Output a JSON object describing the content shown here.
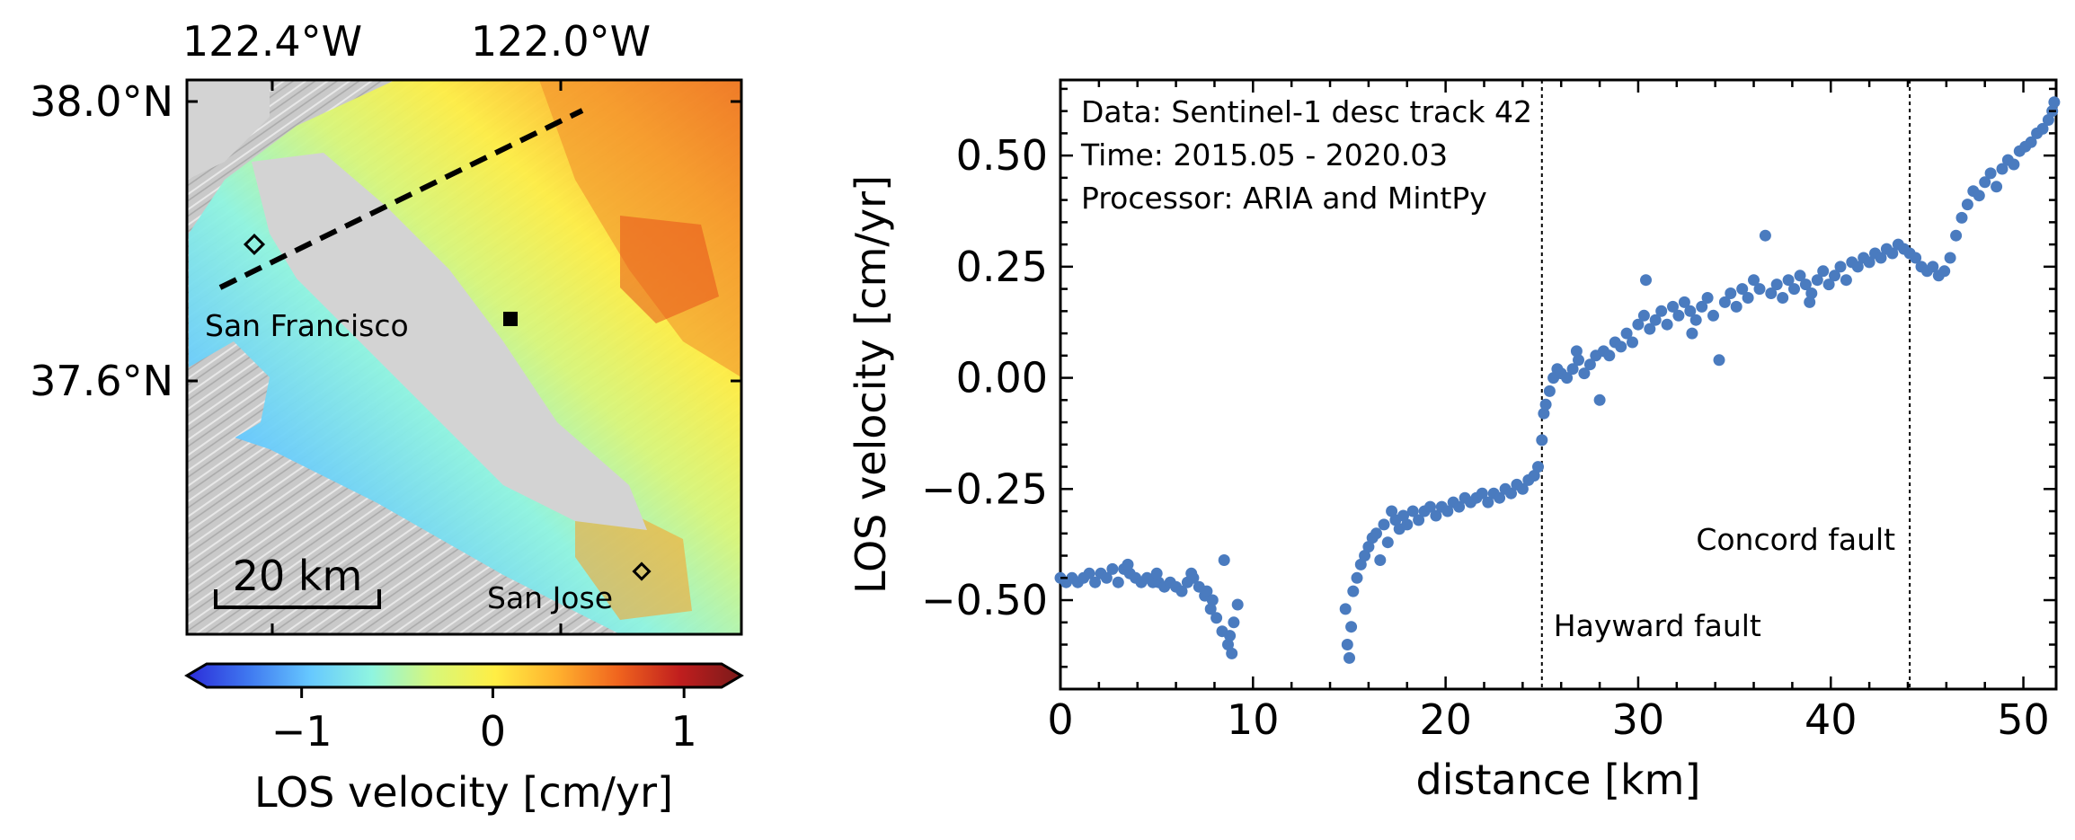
{
  "map": {
    "lon_labels": [
      "122.4°W",
      "122.0°W"
    ],
    "lat_labels": [
      "38.0°N",
      "37.6°N"
    ],
    "city_labels": [
      "San Francisco",
      "San Jose"
    ],
    "scale_label": "20 km",
    "colorbar": {
      "label": "LOS velocity [cm/yr]",
      "ticks": [
        "−1",
        "0",
        "1"
      ],
      "tick_values": [
        -1,
        0,
        1
      ],
      "range": [
        -1.6,
        1.3
      ],
      "colormap_stops": [
        "#2b2bd8",
        "#3f78f0",
        "#66c8ff",
        "#8ff5e0",
        "#d8f77a",
        "#ffee44",
        "#ffb22e",
        "#f0641e",
        "#c01e1e",
        "#7a1a1a"
      ]
    }
  },
  "chart_data": {
    "type": "scatter",
    "title": "",
    "xlabel": "distance [km]",
    "ylabel": "LOS velocity [cm/yr]",
    "xlim": [
      0,
      51.7
    ],
    "ylim": [
      -0.7,
      0.67
    ],
    "xticks": [
      0,
      10,
      20,
      30,
      40,
      50
    ],
    "yticks": [
      -0.5,
      -0.25,
      0.0,
      0.25,
      0.5
    ],
    "ytick_labels": [
      "−0.50",
      "−0.25",
      "0.00",
      "0.25",
      "0.50"
    ],
    "annotations": [
      "Data: Sentinel-1 desc track 42",
      "Time: 2015.05 - 2020.03",
      "Processor: ARIA and MintPy"
    ],
    "fault_lines": [
      {
        "x": 25.0,
        "label": "Hayward fault"
      },
      {
        "x": 44.1,
        "label": "Concord fault"
      }
    ],
    "marker_color": "#4a7bbf",
    "series": [
      {
        "name": "LOS velocity",
        "points": [
          [
            0.0,
            -0.45
          ],
          [
            0.3,
            -0.46
          ],
          [
            0.6,
            -0.45
          ],
          [
            0.9,
            -0.46
          ],
          [
            1.2,
            -0.45
          ],
          [
            1.5,
            -0.44
          ],
          [
            1.8,
            -0.46
          ],
          [
            2.1,
            -0.44
          ],
          [
            2.4,
            -0.45
          ],
          [
            2.7,
            -0.43
          ],
          [
            3.0,
            -0.46
          ],
          [
            3.3,
            -0.43
          ],
          [
            3.6,
            -0.44
          ],
          [
            3.9,
            -0.45
          ],
          [
            4.2,
            -0.46
          ],
          [
            4.5,
            -0.45
          ],
          [
            4.8,
            -0.46
          ],
          [
            5.1,
            -0.46
          ],
          [
            5.4,
            -0.47
          ],
          [
            5.7,
            -0.46
          ],
          [
            6.0,
            -0.47
          ],
          [
            6.3,
            -0.48
          ],
          [
            6.6,
            -0.46
          ],
          [
            6.9,
            -0.45
          ],
          [
            7.2,
            -0.47
          ],
          [
            7.5,
            -0.49
          ],
          [
            7.8,
            -0.52
          ],
          [
            8.1,
            -0.54
          ],
          [
            8.4,
            -0.57
          ],
          [
            8.7,
            -0.6
          ],
          [
            8.9,
            -0.62
          ],
          [
            8.5,
            -0.41
          ],
          [
            9.2,
            -0.51
          ],
          [
            8.8,
            -0.58
          ],
          [
            7.6,
            -0.48
          ],
          [
            3.5,
            -0.42
          ],
          [
            5.0,
            -0.44
          ],
          [
            6.8,
            -0.44
          ],
          [
            9.0,
            -0.55
          ],
          [
            7.9,
            -0.5
          ],
          [
            14.8,
            -0.52
          ],
          [
            14.9,
            -0.6
          ],
          [
            15.0,
            -0.63
          ],
          [
            15.1,
            -0.56
          ],
          [
            15.2,
            -0.48
          ],
          [
            15.4,
            -0.45
          ],
          [
            15.6,
            -0.42
          ],
          [
            15.8,
            -0.4
          ],
          [
            16.0,
            -0.38
          ],
          [
            16.2,
            -0.36
          ],
          [
            16.4,
            -0.35
          ],
          [
            16.6,
            -0.41
          ],
          [
            16.8,
            -0.33
          ],
          [
            17.0,
            -0.37
          ],
          [
            17.2,
            -0.3
          ],
          [
            17.4,
            -0.32
          ],
          [
            17.6,
            -0.34
          ],
          [
            17.8,
            -0.31
          ],
          [
            18.0,
            -0.33
          ],
          [
            18.3,
            -0.3
          ],
          [
            18.6,
            -0.32
          ],
          [
            18.9,
            -0.3
          ],
          [
            19.2,
            -0.29
          ],
          [
            19.5,
            -0.31
          ],
          [
            19.8,
            -0.29
          ],
          [
            20.1,
            -0.3
          ],
          [
            20.4,
            -0.28
          ],
          [
            20.7,
            -0.29
          ],
          [
            21.0,
            -0.27
          ],
          [
            21.3,
            -0.28
          ],
          [
            21.6,
            -0.27
          ],
          [
            21.9,
            -0.26
          ],
          [
            22.2,
            -0.28
          ],
          [
            22.5,
            -0.26
          ],
          [
            22.8,
            -0.27
          ],
          [
            23.1,
            -0.25
          ],
          [
            23.4,
            -0.26
          ],
          [
            23.7,
            -0.24
          ],
          [
            24.0,
            -0.25
          ],
          [
            24.3,
            -0.23
          ],
          [
            24.6,
            -0.22
          ],
          [
            24.8,
            -0.2
          ],
          [
            25.0,
            -0.14
          ],
          [
            25.1,
            -0.08
          ],
          [
            25.2,
            -0.06
          ],
          [
            25.4,
            -0.03
          ],
          [
            25.6,
            0.0
          ],
          [
            25.8,
            0.02
          ],
          [
            26.0,
            0.01
          ],
          [
            26.3,
            0.0
          ],
          [
            26.6,
            0.02
          ],
          [
            26.9,
            0.04
          ],
          [
            27.2,
            0.01
          ],
          [
            27.5,
            0.03
          ],
          [
            27.8,
            0.05
          ],
          [
            28.0,
            -0.05
          ],
          [
            28.2,
            0.06
          ],
          [
            28.5,
            0.05
          ],
          [
            28.8,
            0.08
          ],
          [
            29.1,
            0.07
          ],
          [
            29.4,
            0.1
          ],
          [
            29.7,
            0.08
          ],
          [
            30.0,
            0.12
          ],
          [
            30.3,
            0.14
          ],
          [
            30.6,
            0.11
          ],
          [
            30.9,
            0.13
          ],
          [
            31.2,
            0.15
          ],
          [
            31.5,
            0.12
          ],
          [
            31.8,
            0.16
          ],
          [
            32.1,
            0.14
          ],
          [
            32.4,
            0.17
          ],
          [
            32.7,
            0.15
          ],
          [
            33.0,
            0.13
          ],
          [
            33.3,
            0.16
          ],
          [
            33.6,
            0.18
          ],
          [
            33.9,
            0.14
          ],
          [
            34.2,
            0.04
          ],
          [
            34.5,
            0.17
          ],
          [
            34.8,
            0.19
          ],
          [
            35.1,
            0.16
          ],
          [
            35.4,
            0.2
          ],
          [
            35.7,
            0.18
          ],
          [
            36.0,
            0.22
          ],
          [
            36.3,
            0.2
          ],
          [
            36.6,
            0.32
          ],
          [
            36.9,
            0.19
          ],
          [
            37.2,
            0.21
          ],
          [
            37.5,
            0.18
          ],
          [
            37.8,
            0.22
          ],
          [
            38.1,
            0.2
          ],
          [
            38.4,
            0.23
          ],
          [
            38.7,
            0.21
          ],
          [
            39.0,
            0.19
          ],
          [
            39.3,
            0.22
          ],
          [
            39.6,
            0.24
          ],
          [
            39.9,
            0.21
          ],
          [
            40.2,
            0.23
          ],
          [
            40.5,
            0.25
          ],
          [
            40.8,
            0.22
          ],
          [
            41.1,
            0.26
          ],
          [
            41.4,
            0.25
          ],
          [
            41.7,
            0.27
          ],
          [
            42.0,
            0.26
          ],
          [
            42.3,
            0.28
          ],
          [
            42.6,
            0.27
          ],
          [
            42.9,
            0.29
          ],
          [
            43.2,
            0.28
          ],
          [
            43.5,
            0.3
          ],
          [
            43.8,
            0.29
          ],
          [
            44.1,
            0.28
          ],
          [
            44.4,
            0.27
          ],
          [
            44.7,
            0.25
          ],
          [
            45.0,
            0.24
          ],
          [
            45.3,
            0.25
          ],
          [
            45.6,
            0.23
          ],
          [
            45.9,
            0.24
          ],
          [
            46.2,
            0.27
          ],
          [
            46.5,
            0.32
          ],
          [
            46.8,
            0.36
          ],
          [
            47.1,
            0.39
          ],
          [
            47.4,
            0.42
          ],
          [
            47.7,
            0.41
          ],
          [
            48.0,
            0.44
          ],
          [
            48.3,
            0.46
          ],
          [
            48.6,
            0.43
          ],
          [
            48.9,
            0.47
          ],
          [
            49.2,
            0.49
          ],
          [
            49.5,
            0.48
          ],
          [
            49.8,
            0.51
          ],
          [
            50.1,
            0.52
          ],
          [
            50.4,
            0.53
          ],
          [
            50.7,
            0.55
          ],
          [
            51.0,
            0.56
          ],
          [
            51.3,
            0.58
          ],
          [
            51.5,
            0.6
          ],
          [
            51.6,
            0.62
          ],
          [
            30.4,
            0.22
          ],
          [
            26.8,
            0.06
          ],
          [
            32.8,
            0.1
          ],
          [
            38.9,
            0.17
          ]
        ]
      }
    ]
  }
}
